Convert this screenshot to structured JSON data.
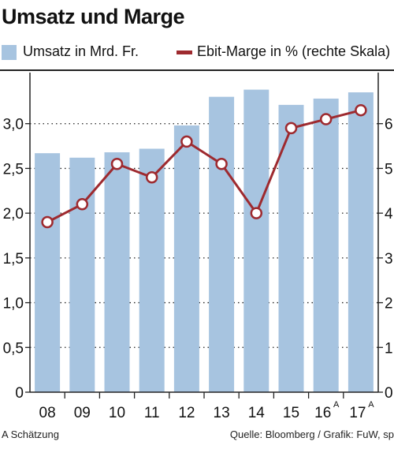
{
  "chart_data": {
    "type": "bar",
    "title": "Umsatz und Marge",
    "categories": [
      "08",
      "09",
      "10",
      "11",
      "12",
      "13",
      "14",
      "15",
      "16",
      "17"
    ],
    "category_superscripts": [
      "",
      "",
      "",
      "",
      "",
      "",
      "",
      "",
      "A",
      "A"
    ],
    "series": [
      {
        "name": "Umsatz in Mrd. Fr.",
        "type": "bar",
        "axis": "left",
        "color": "#a7c4e0",
        "values": [
          2.67,
          2.62,
          2.68,
          2.72,
          2.98,
          3.3,
          3.38,
          3.21,
          3.28,
          3.35
        ]
      },
      {
        "name": "Ebit-Marge in % (rechte Skala)",
        "type": "line",
        "axis": "right",
        "color": "#9e2a2f",
        "values": [
          3.8,
          4.2,
          5.1,
          4.8,
          5.6,
          5.1,
          4.0,
          5.9,
          6.1,
          6.3
        ]
      }
    ],
    "ylim_left": [
      0,
      3.5
    ],
    "yticks_left": [
      "0",
      "0,5",
      "1,0",
      "1,5",
      "2,0",
      "2,5",
      "3,0"
    ],
    "ylim_right": [
      0,
      7
    ],
    "yticks_right": [
      "0",
      "1",
      "2",
      "3",
      "4",
      "5",
      "6"
    ],
    "grid": "dotted",
    "legend_position": "top"
  },
  "footnote": "A Schätzung",
  "source": "Quelle: Bloomberg / Grafik: FuW, sp",
  "colors": {
    "bar": "#a7c4e0",
    "line": "#9e2a2f",
    "axis": "#222222"
  }
}
